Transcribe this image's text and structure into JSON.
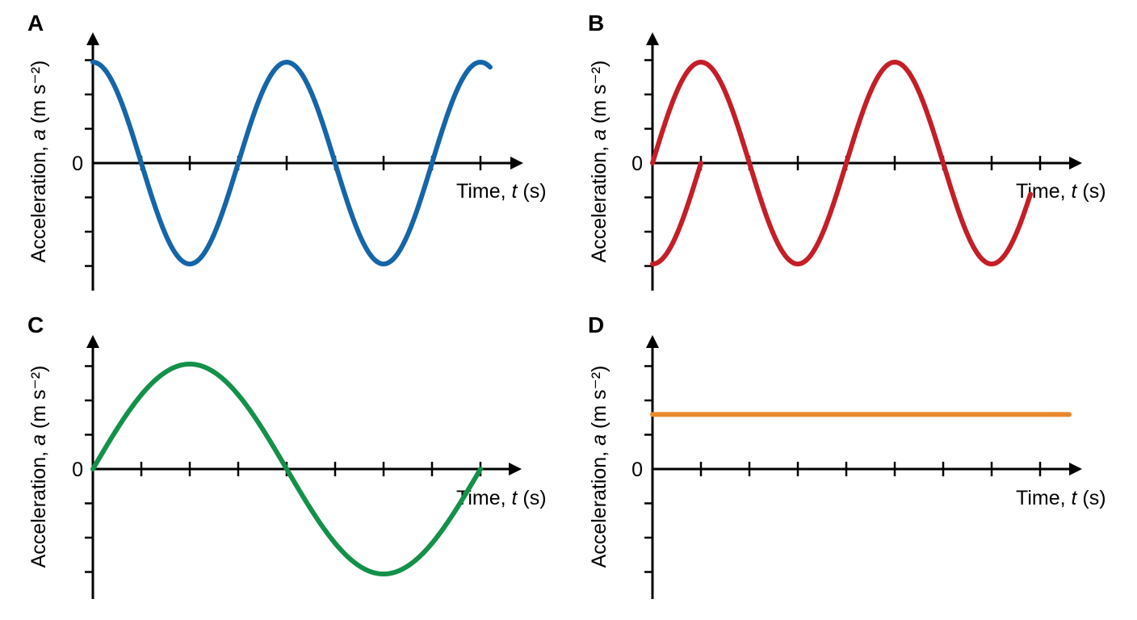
{
  "chart_data": [
    {
      "panel": "A",
      "type": "line",
      "ylabel": "Acceleration, a (m s⁻²)",
      "xlabel": "Time, t (s)",
      "zero_label": "0",
      "xticks": 8,
      "yticks_pos": 3,
      "yticks_neg": 3,
      "series": [
        {
          "color": "#1565a9",
          "function": "cos",
          "periods": 2,
          "amplitude": 1,
          "x": [
            0,
            8.2
          ],
          "segments": [
            [
              0,
              8.2
            ]
          ]
        }
      ]
    },
    {
      "panel": "B",
      "type": "line",
      "ylabel": "Acceleration, a (m s⁻²)",
      "xlabel": "Time, t (s)",
      "zero_label": "0",
      "xticks": 8,
      "yticks_pos": 3,
      "yticks_neg": 3,
      "series": [
        {
          "color": "#c41e27",
          "function": "sin",
          "periods": 2,
          "amplitude": 1,
          "segments": [
            [
              0,
              1
            ]
          ]
        },
        {
          "color": "#c41e27",
          "function": "-cos",
          "periods": 2,
          "amplitude": 1,
          "segments": [
            [
              0,
              1
            ]
          ]
        },
        {
          "color": "#c41e27",
          "function": "sin",
          "periods": 2,
          "amplitude": 1,
          "segments": [
            [
              1,
              7.8
            ]
          ]
        }
      ]
    },
    {
      "panel": "C",
      "type": "line",
      "ylabel": "Acceleration, a (m s⁻²)",
      "xlabel": "Time, t (s)",
      "zero_label": "0",
      "xticks": 8,
      "yticks_pos": 3,
      "yticks_neg": 3,
      "series": [
        {
          "color": "#13914a",
          "function": "sin",
          "periods": 1,
          "amplitude": 1,
          "segments": [
            [
              0,
              8
            ]
          ]
        }
      ]
    },
    {
      "panel": "D",
      "type": "line",
      "ylabel": "Acceleration, a (m s⁻²)",
      "xlabel": "Time, t (s)",
      "zero_label": "0",
      "xticks": 8,
      "yticks_pos": 3,
      "yticks_neg": 3,
      "series": [
        {
          "color": "#e8892b",
          "function": "const",
          "value": 0.52,
          "segments": [
            [
              0,
              8.6
            ]
          ]
        }
      ]
    }
  ]
}
